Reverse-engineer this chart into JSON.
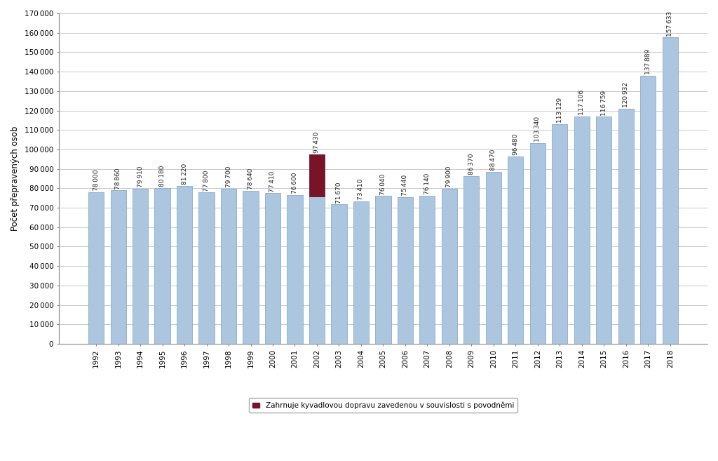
{
  "years": [
    1992,
    1993,
    1994,
    1995,
    1996,
    1997,
    1998,
    1999,
    2000,
    2001,
    2002,
    2003,
    2004,
    2005,
    2006,
    2007,
    2008,
    2009,
    2010,
    2011,
    2012,
    2013,
    2014,
    2015,
    2016,
    2017,
    2018
  ],
  "values": [
    78000,
    78860,
    79910,
    80180,
    81220,
    77800,
    79700,
    78640,
    77410,
    76600,
    75670,
    71670,
    73410,
    76040,
    75440,
    76140,
    79900,
    86370,
    88470,
    96480,
    103340,
    113129,
    117106,
    116759,
    120932,
    137889,
    157633
  ],
  "flood_year_idx": 10,
  "flood_base": 75670,
  "flood_total": 97430,
  "bar_color": "#adc6e0",
  "bar_edge_color": "#7aA0c4",
  "flood_color": "#7a1228",
  "ylabel": "Počet přepravených osob",
  "ylim": [
    0,
    170000
  ],
  "yticks": [
    0,
    10000,
    20000,
    30000,
    40000,
    50000,
    60000,
    70000,
    80000,
    90000,
    100000,
    110000,
    120000,
    130000,
    140000,
    150000,
    160000,
    170000
  ],
  "legend_label": "Zahrnuje kyvadlovou dopravu zavedenou v souvislosti s povodněmi",
  "background_color": "#ffffff",
  "grid_color": "#c8c8c8",
  "label_fontsize": 6.5,
  "axis_fontsize": 7.5,
  "ylabel_fontsize": 8.5,
  "bar_width": 0.7
}
